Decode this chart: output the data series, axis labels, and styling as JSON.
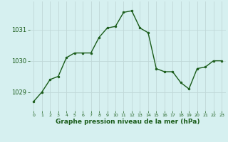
{
  "x": [
    0,
    1,
    2,
    3,
    4,
    5,
    6,
    7,
    8,
    9,
    10,
    11,
    12,
    13,
    14,
    15,
    16,
    17,
    18,
    19,
    20,
    21,
    22,
    23
  ],
  "y": [
    1028.7,
    1029.0,
    1029.4,
    1029.5,
    1030.1,
    1030.25,
    1030.25,
    1030.25,
    1030.75,
    1031.05,
    1031.1,
    1031.55,
    1031.6,
    1031.05,
    1030.9,
    1029.75,
    1029.65,
    1029.65,
    1029.3,
    1029.1,
    1029.75,
    1029.8,
    1030.0,
    1030.0
  ],
  "line_color": "#1a5c1a",
  "marker": "o",
  "marker_size": 2.0,
  "bg_color": "#d6f0f0",
  "grid_color": "#c0d8d8",
  "axis_label_color": "#1a5c1a",
  "tick_label_color": "#1a5c1a",
  "xlabel": "Graphe pression niveau de la mer (hPa)",
  "yticks": [
    1029,
    1030,
    1031
  ],
  "xlim": [
    -0.5,
    23.5
  ],
  "ylim": [
    1028.4,
    1031.9
  ],
  "title": ""
}
